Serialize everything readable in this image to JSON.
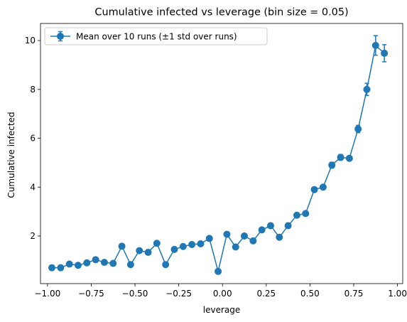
{
  "chart_data": {
    "type": "line",
    "title": "Cumulative infected vs leverage (bin size = 0.05)",
    "xlabel": "leverage",
    "ylabel": "Cumulative infected",
    "xlim": [
      -1.04,
      1.03
    ],
    "ylim": [
      0.05,
      10.7
    ],
    "xticks": [
      -1.0,
      -0.75,
      -0.5,
      -0.25,
      0.0,
      0.25,
      0.5,
      0.75,
      1.0
    ],
    "xtick_labels": [
      "−1.00",
      "−0.75",
      "−0.50",
      "−0.25",
      "0.00",
      "0.25",
      "0.50",
      "0.75",
      "1.00"
    ],
    "yticks": [
      2,
      4,
      6,
      8,
      10
    ],
    "ytick_labels": [
      "2",
      "4",
      "6",
      "8",
      "10"
    ],
    "grid": false,
    "legend_position": "top-left",
    "series": [
      {
        "name": "Mean over 10 runs (±1 std over runs)",
        "color": "#1f77b4",
        "marker": "circle",
        "x": [
          -0.975,
          -0.925,
          -0.875,
          -0.825,
          -0.775,
          -0.725,
          -0.675,
          -0.625,
          -0.575,
          -0.525,
          -0.475,
          -0.425,
          -0.375,
          -0.325,
          -0.275,
          -0.225,
          -0.175,
          -0.125,
          -0.075,
          -0.025,
          0.025,
          0.075,
          0.125,
          0.175,
          0.225,
          0.275,
          0.325,
          0.375,
          0.425,
          0.475,
          0.525,
          0.575,
          0.625,
          0.675,
          0.725,
          0.775,
          0.825,
          0.875,
          0.925
        ],
        "y": [
          0.7,
          0.7,
          0.85,
          0.8,
          0.9,
          1.03,
          0.92,
          0.88,
          1.58,
          0.83,
          1.4,
          1.33,
          1.7,
          0.83,
          1.45,
          1.57,
          1.65,
          1.68,
          1.9,
          0.55,
          2.07,
          1.55,
          2.0,
          1.8,
          2.25,
          2.42,
          1.95,
          2.42,
          2.85,
          2.92,
          3.9,
          4.0,
          4.9,
          5.22,
          5.18,
          6.38,
          8.0,
          9.8,
          9.48
        ],
        "err": [
          0.02,
          0.02,
          0.02,
          0.02,
          0.02,
          0.02,
          0.02,
          0.02,
          0.03,
          0.02,
          0.03,
          0.03,
          0.03,
          0.02,
          0.03,
          0.03,
          0.03,
          0.03,
          0.03,
          0.02,
          0.03,
          0.03,
          0.03,
          0.03,
          0.04,
          0.04,
          0.04,
          0.05,
          0.05,
          0.05,
          0.1,
          0.05,
          0.12,
          0.12,
          0.1,
          0.15,
          0.25,
          0.4,
          0.35
        ]
      }
    ]
  }
}
